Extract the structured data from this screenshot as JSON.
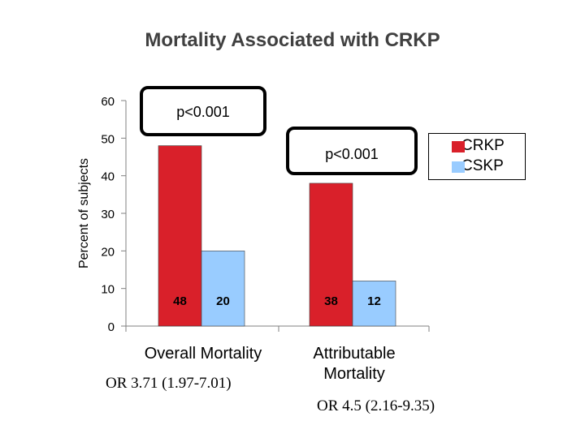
{
  "slide": {
    "title": "Mortality Associated with CRKP",
    "or_left": "OR 3.71 (1.97-7.01)",
    "or_right": "OR 4.5 (2.16-9.35)"
  },
  "chart_data": {
    "type": "bar",
    "categories": [
      "Overall Mortality",
      "Attributable Mortality"
    ],
    "category_lines": [
      [
        "Overall Mortality"
      ],
      [
        "Attributable",
        "Mortality"
      ]
    ],
    "series": [
      {
        "name": "CRKP",
        "values": [
          48,
          38
        ],
        "color": "#d9202a"
      },
      {
        "name": "CSKP",
        "values": [
          20,
          12
        ],
        "color": "#99ccff"
      }
    ],
    "data_labels": [
      [
        "48",
        "38"
      ],
      [
        "20",
        "12"
      ]
    ],
    "ylabel": "Percent of subjects",
    "ylim": [
      0,
      60
    ],
    "yticks": [
      0,
      10,
      20,
      30,
      40,
      50,
      60
    ],
    "grid": false,
    "legend_position": "top-right",
    "annotations": [
      "p<0.001",
      "p<0.001"
    ]
  }
}
